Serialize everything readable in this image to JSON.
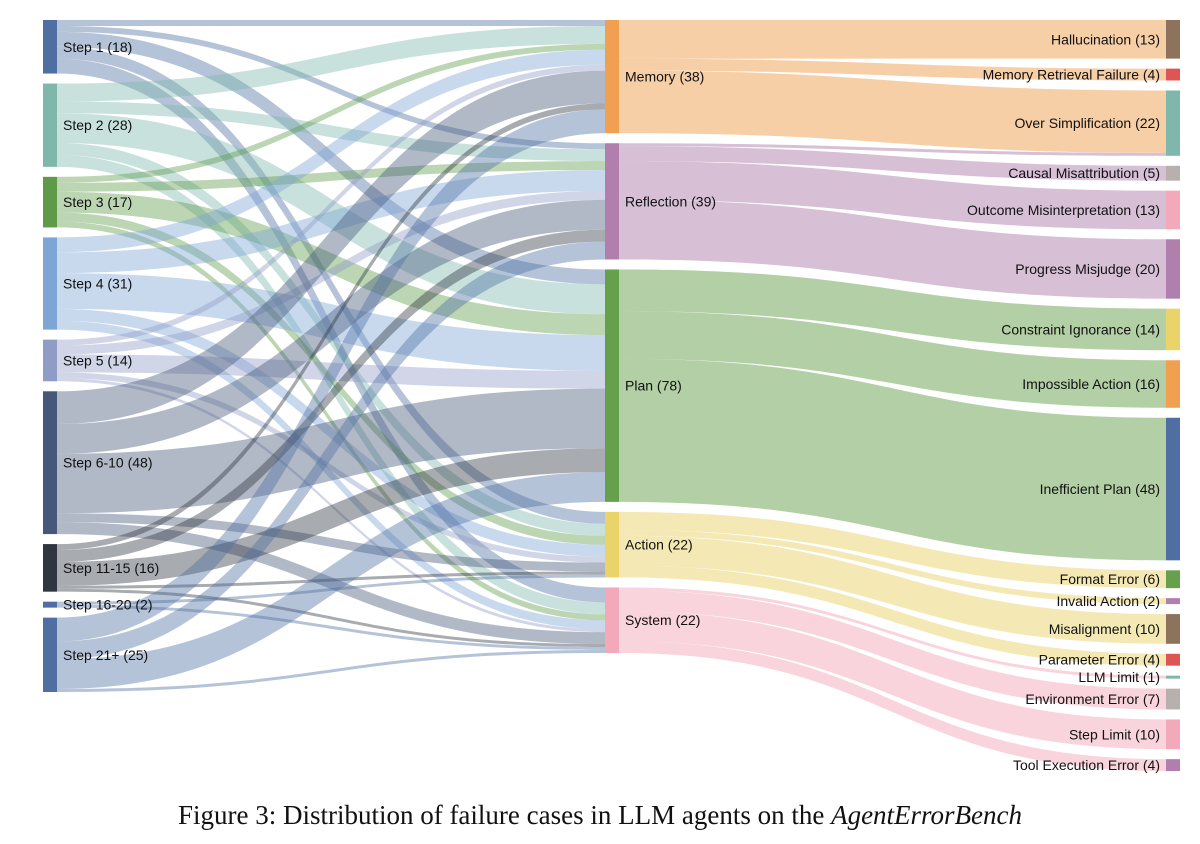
{
  "chart_data": {
    "type": "sankey",
    "title": "Figure 3: Distribution of failure cases in LLM agents on the AgentErrorBench",
    "caption_prefix": "Figure 3: Distribution of failure cases in LLM agents on the ",
    "caption_emphasis": "AgentErrorBench",
    "columns": [
      {
        "name": "step",
        "nodes": [
          {
            "id": "s1",
            "label": "Step 1 (18)",
            "value": 18,
            "color": "#4f6fa3"
          },
          {
            "id": "s2",
            "label": "Step 2 (28)",
            "value": 28,
            "color": "#7fb8ab"
          },
          {
            "id": "s3",
            "label": "Step 3 (17)",
            "value": 17,
            "color": "#5f9a4a"
          },
          {
            "id": "s4",
            "label": "Step 4 (31)",
            "value": 31,
            "color": "#7da5d6"
          },
          {
            "id": "s5",
            "label": "Step 5 (14)",
            "value": 14,
            "color": "#8f9cc5"
          },
          {
            "id": "s6",
            "label": "Step 6-10 (48)",
            "value": 48,
            "color": "#46587a"
          },
          {
            "id": "s11",
            "label": "Step 11-15 (16)",
            "value": 16,
            "color": "#2f3640"
          },
          {
            "id": "s16",
            "label": "Step 16-20 (2)",
            "value": 2,
            "color": "#4f6fa3"
          },
          {
            "id": "s21",
            "label": "Step 21+ (25)",
            "value": 25,
            "color": "#4f6fa3"
          }
        ]
      },
      {
        "name": "module",
        "nodes": [
          {
            "id": "mem",
            "label": "Memory (38)",
            "value": 38,
            "color": "#f0a050"
          },
          {
            "id": "ref",
            "label": "Reflection (39)",
            "value": 39,
            "color": "#b07fae"
          },
          {
            "id": "plan",
            "label": "Plan (78)",
            "value": 78,
            "color": "#67a04c"
          },
          {
            "id": "act",
            "label": "Action (22)",
            "value": 22,
            "color": "#ead46a"
          },
          {
            "id": "sys",
            "label": "System (22)",
            "value": 22,
            "color": "#f3a9ba"
          }
        ]
      },
      {
        "name": "error_type",
        "nodes": [
          {
            "id": "hal",
            "label": "Hallucination (13)",
            "value": 13,
            "color": "#8d735c"
          },
          {
            "id": "mrf",
            "label": "Memory Retrieval Failure (4)",
            "value": 4,
            "color": "#dd5655"
          },
          {
            "id": "ovs",
            "label": "Over Simplification (22)",
            "value": 22,
            "color": "#7fb8ab"
          },
          {
            "id": "cma",
            "label": "Causal Misattribution (5)",
            "value": 5,
            "color": "#b8b0ac"
          },
          {
            "id": "omi",
            "label": "Outcome Misinterpretation (13)",
            "value": 13,
            "color": "#f3a9ba"
          },
          {
            "id": "pmj",
            "label": "Progress Misjudge (20)",
            "value": 20,
            "color": "#b07fae"
          },
          {
            "id": "cig",
            "label": "Constraint Ignorance (14)",
            "value": 14,
            "color": "#ead46a"
          },
          {
            "id": "ima",
            "label": "Impossible Action (16)",
            "value": 16,
            "color": "#f0a050"
          },
          {
            "id": "inp",
            "label": "Inefficient Plan (48)",
            "value": 48,
            "color": "#4f6fa3"
          },
          {
            "id": "fme",
            "label": "Format Error (6)",
            "value": 6,
            "color": "#67a04c"
          },
          {
            "id": "iva",
            "label": "Invalid Action (2)",
            "value": 2,
            "color": "#b07fae"
          },
          {
            "id": "mis",
            "label": "Misalignment (10)",
            "value": 10,
            "color": "#8d735c"
          },
          {
            "id": "pae",
            "label": "Parameter Error (4)",
            "value": 4,
            "color": "#dd5655"
          },
          {
            "id": "llm",
            "label": "LLM Limit (1)",
            "value": 1,
            "color": "#7fb8ab"
          },
          {
            "id": "env",
            "label": "Environment Error (7)",
            "value": 7,
            "color": "#b8b0ac"
          },
          {
            "id": "stl",
            "label": "Step Limit (10)",
            "value": 10,
            "color": "#f3a9ba"
          },
          {
            "id": "tee",
            "label": "Tool Execution Error (4)",
            "value": 4,
            "color": "#b07fae"
          }
        ]
      }
    ],
    "links": [
      {
        "source": "s1",
        "target": "mem",
        "value": 2
      },
      {
        "source": "s1",
        "target": "ref",
        "value": 2
      },
      {
        "source": "s1",
        "target": "plan",
        "value": 5
      },
      {
        "source": "s1",
        "target": "act",
        "value": 4
      },
      {
        "source": "s1",
        "target": "sys",
        "value": 5
      },
      {
        "source": "s2",
        "target": "mem",
        "value": 6
      },
      {
        "source": "s2",
        "target": "ref",
        "value": 4
      },
      {
        "source": "s2",
        "target": "plan",
        "value": 10
      },
      {
        "source": "s2",
        "target": "act",
        "value": 4
      },
      {
        "source": "s2",
        "target": "sys",
        "value": 4
      },
      {
        "source": "s3",
        "target": "mem",
        "value": 2
      },
      {
        "source": "s3",
        "target": "ref",
        "value": 3
      },
      {
        "source": "s3",
        "target": "plan",
        "value": 7
      },
      {
        "source": "s3",
        "target": "act",
        "value": 3
      },
      {
        "source": "s3",
        "target": "sys",
        "value": 2
      },
      {
        "source": "s4",
        "target": "mem",
        "value": 5
      },
      {
        "source": "s4",
        "target": "ref",
        "value": 7
      },
      {
        "source": "s4",
        "target": "plan",
        "value": 12
      },
      {
        "source": "s4",
        "target": "act",
        "value": 4
      },
      {
        "source": "s4",
        "target": "sys",
        "value": 3
      },
      {
        "source": "s5",
        "target": "mem",
        "value": 2
      },
      {
        "source": "s5",
        "target": "ref",
        "value": 3
      },
      {
        "source": "s5",
        "target": "plan",
        "value": 6
      },
      {
        "source": "s5",
        "target": "act",
        "value": 2
      },
      {
        "source": "s5",
        "target": "sys",
        "value": 1
      },
      {
        "source": "s6",
        "target": "mem",
        "value": 11
      },
      {
        "source": "s6",
        "target": "ref",
        "value": 10
      },
      {
        "source": "s6",
        "target": "plan",
        "value": 20
      },
      {
        "source": "s6",
        "target": "act",
        "value": 3
      },
      {
        "source": "s6",
        "target": "sys",
        "value": 4
      },
      {
        "source": "s11",
        "target": "mem",
        "value": 2
      },
      {
        "source": "s11",
        "target": "ref",
        "value": 4
      },
      {
        "source": "s11",
        "target": "plan",
        "value": 8
      },
      {
        "source": "s11",
        "target": "act",
        "value": 1
      },
      {
        "source": "s11",
        "target": "sys",
        "value": 1
      },
      {
        "source": "s16",
        "target": "act",
        "value": 1
      },
      {
        "source": "s16",
        "target": "sys",
        "value": 1
      },
      {
        "source": "s21",
        "target": "mem",
        "value": 8
      },
      {
        "source": "s21",
        "target": "ref",
        "value": 6
      },
      {
        "source": "s21",
        "target": "plan",
        "value": 10
      },
      {
        "source": "s21",
        "target": "sys",
        "value": 1
      },
      {
        "source": "mem",
        "target": "hal",
        "value": 13
      },
      {
        "source": "mem",
        "target": "mrf",
        "value": 4
      },
      {
        "source": "mem",
        "target": "ovs",
        "value": 21
      },
      {
        "source": "ref",
        "target": "ovs",
        "value": 1
      },
      {
        "source": "ref",
        "target": "cma",
        "value": 5
      },
      {
        "source": "ref",
        "target": "omi",
        "value": 13
      },
      {
        "source": "ref",
        "target": "pmj",
        "value": 20
      },
      {
        "source": "plan",
        "target": "cig",
        "value": 14
      },
      {
        "source": "plan",
        "target": "ima",
        "value": 16
      },
      {
        "source": "plan",
        "target": "inp",
        "value": 48
      },
      {
        "source": "act",
        "target": "fme",
        "value": 6
      },
      {
        "source": "act",
        "target": "iva",
        "value": 2
      },
      {
        "source": "act",
        "target": "mis",
        "value": 10
      },
      {
        "source": "act",
        "target": "pae",
        "value": 4
      },
      {
        "source": "sys",
        "target": "llm",
        "value": 1
      },
      {
        "source": "sys",
        "target": "env",
        "value": 7
      },
      {
        "source": "sys",
        "target": "stl",
        "value": 10
      },
      {
        "source": "sys",
        "target": "tee",
        "value": 4
      }
    ]
  }
}
